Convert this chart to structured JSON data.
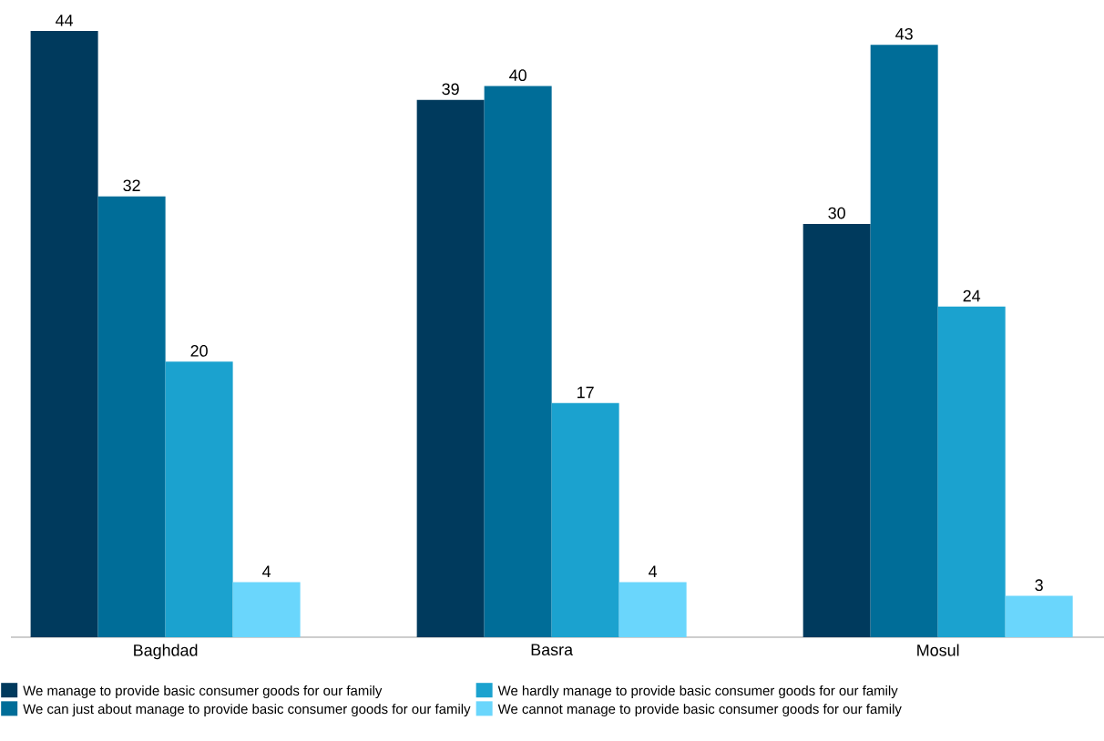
{
  "chart_data": {
    "type": "bar",
    "categories": [
      "Baghdad",
      "Basra",
      "Mosul"
    ],
    "series": [
      {
        "name": "We manage to provide basic consumer goods for our family",
        "color": "#003a5d",
        "values": [
          44,
          39,
          30
        ]
      },
      {
        "name": "We can just about manage to provide basic consumer goods for our family",
        "color": "#006d98",
        "values": [
          32,
          40,
          43
        ]
      },
      {
        "name": "We hardly manage to provide basic consumer goods for our family",
        "color": "#1ba2cf",
        "values": [
          20,
          17,
          24
        ]
      },
      {
        "name": "We cannot manage to provide basic consumer goods for our family",
        "color": "#6ad6fc",
        "values": [
          4,
          4,
          3
        ]
      }
    ],
    "data_labels": true,
    "legend": "bottom"
  }
}
